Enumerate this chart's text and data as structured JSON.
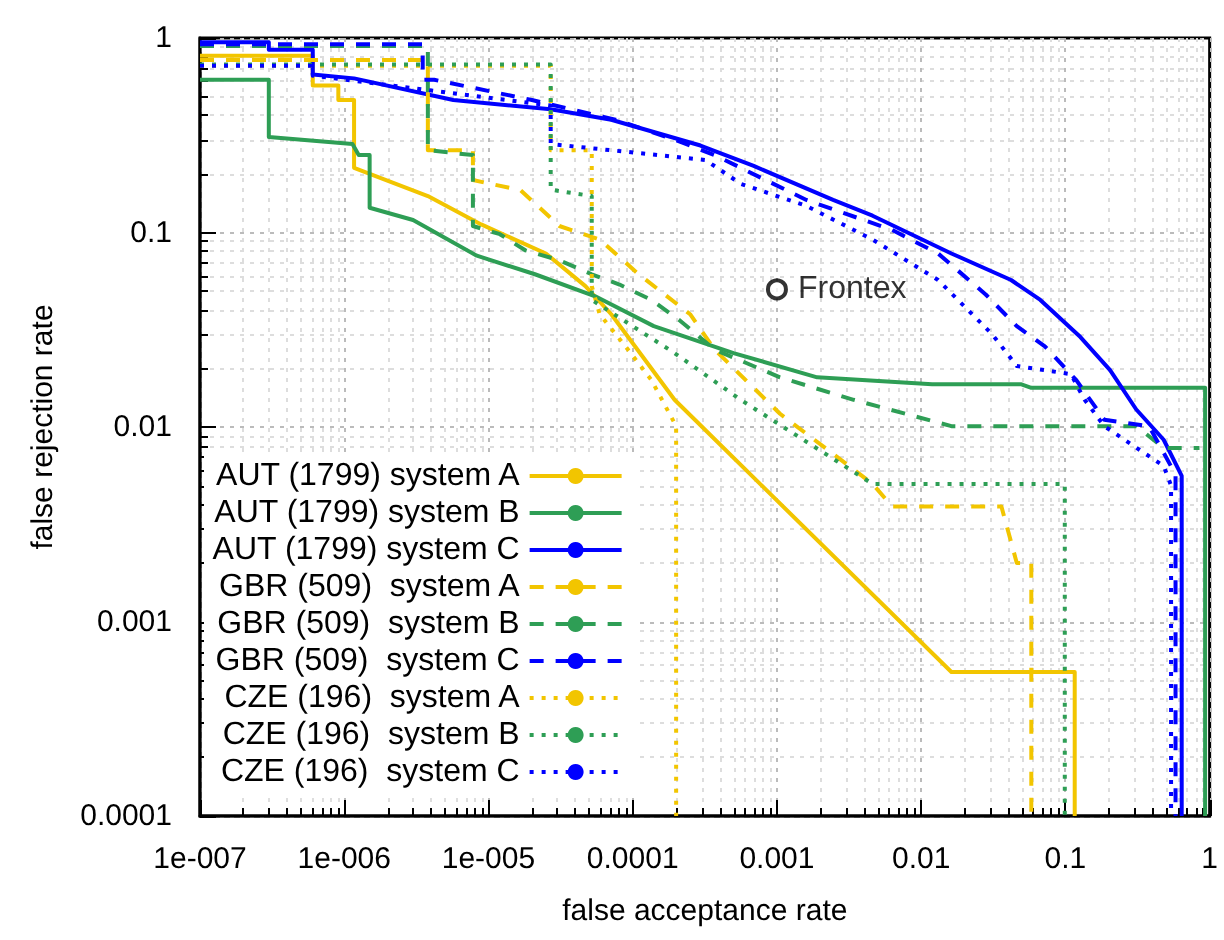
{
  "chart_data": {
    "type": "line",
    "xlabel": "false acceptance rate",
    "ylabel": "false rejection rate",
    "log": "xy",
    "grid": true,
    "legend": "bottom left",
    "marker": "none",
    "xlim": [
      1e-07,
      1
    ],
    "ylim": [
      0.0001,
      1
    ],
    "xticks": [
      {
        "value": 1e-07,
        "label": "1e-007"
      },
      {
        "value": 1e-06,
        "label": "1e-006"
      },
      {
        "value": 1e-05,
        "label": "1e-005"
      },
      0.0001,
      0.001,
      0.01,
      0.1,
      1
    ],
    "yticks": [
      0.0001,
      0.001,
      0.01,
      0.1,
      1
    ],
    "series": [
      {
        "name": "AUT (1799) system A",
        "color": "#f2c500",
        "line_style": "solid",
        "x": [
          1e-07,
          6.05e-07,
          6.05e-07,
          9.1e-07,
          9.1e-07,
          1.17e-06,
          1.17e-06,
          3.8e-06,
          8.9e-06,
          2.5e-05,
          4.7e-05,
          7.1e-05,
          0.000195,
          0.0162,
          0.116,
          0.116
        ],
        "values": [
          0.81,
          0.81,
          0.57,
          0.57,
          0.48,
          0.48,
          0.215,
          0.154,
          0.11,
          0.078,
          0.053,
          0.038,
          0.0138,
          0.00055,
          0.00055,
          0.0001
        ]
      },
      {
        "name": "AUT (1799) system B",
        "color": "#2e9e55",
        "line_style": "solid",
        "x": [
          1e-07,
          3e-07,
          3e-07,
          1.14e-06,
          1.26e-06,
          1.5e-06,
          1.5e-06,
          3e-06,
          8.3e-06,
          2.1e-05,
          5.5e-05,
          0.00014,
          0.0005,
          0.0019,
          0.0119,
          0.049,
          0.058,
          0.93,
          0.93
        ],
        "values": [
          0.61,
          0.61,
          0.31,
          0.285,
          0.25,
          0.25,
          0.134,
          0.116,
          0.076,
          0.061,
          0.047,
          0.033,
          0.024,
          0.018,
          0.0166,
          0.0166,
          0.0159,
          0.0159,
          0.0001
        ]
      },
      {
        "name": "AUT (1799) system C",
        "color": "#0000ff",
        "line_style": "solid",
        "x": [
          1e-07,
          3e-07,
          3e-07,
          6.05e-07,
          6.05e-07,
          1.17e-06,
          5.7e-06,
          2.7e-05,
          7.1e-05,
          0.000295,
          0.00069,
          0.00245,
          0.0046,
          0.0162,
          0.042,
          0.067,
          0.127,
          0.204,
          0.31,
          0.48,
          0.64,
          0.64
        ],
        "values": [
          0.95,
          0.95,
          0.87,
          0.87,
          0.65,
          0.62,
          0.48,
          0.43,
          0.38,
          0.28,
          0.22,
          0.147,
          0.122,
          0.078,
          0.057,
          0.045,
          0.029,
          0.0196,
          0.0123,
          0.0086,
          0.0056,
          0.0001
        ]
      },
      {
        "name": "GBR (509)  system A",
        "color": "#f2c500",
        "line_style": "dashed",
        "x": [
          1e-07,
          3.8e-06,
          3.8e-06,
          7.8e-06,
          7.8e-06,
          1.67e-05,
          3.1e-05,
          5.9e-05,
          0.00011,
          0.00025,
          0.00037,
          0.00105,
          0.0046,
          0.0063,
          0.036,
          0.046,
          0.058,
          0.058
        ],
        "values": [
          0.77,
          0.77,
          0.265,
          0.265,
          0.186,
          0.165,
          0.108,
          0.092,
          0.061,
          0.038,
          0.025,
          0.0117,
          0.0051,
          0.0039,
          0.0039,
          0.002,
          0.002,
          0.0001
        ]
      },
      {
        "name": "GBR (509)  system B",
        "color": "#2e9e55",
        "line_style": "dashed",
        "x": [
          1e-07,
          3.8e-06,
          3.8e-06,
          7.8e-06,
          7.8e-06,
          1.2e-05,
          1.8e-05,
          3.1e-05,
          5.2e-05,
          8.1e-05,
          0.000135,
          0.00021,
          0.00037,
          0.00105,
          0.0034,
          0.0162,
          0.31,
          0.48,
          0.85
        ],
        "values": [
          0.91,
          0.91,
          0.265,
          0.25,
          0.108,
          0.098,
          0.081,
          0.072,
          0.061,
          0.054,
          0.045,
          0.0355,
          0.025,
          0.018,
          0.0138,
          0.0101,
          0.0101,
          0.0078,
          0.0078
        ]
      },
      {
        "name": "GBR (509)  system C",
        "color": "#0000ff",
        "line_style": "dashed",
        "x": [
          1e-07,
          3.5e-06,
          3.5e-06,
          4.2e-06,
          2e-05,
          7.6e-05,
          0.000195,
          0.00037,
          0.0016,
          0.0063,
          0.0131,
          0.028,
          0.046,
          0.072,
          0.119,
          0.186,
          0.38,
          0.58,
          0.58
        ],
        "values": [
          0.93,
          0.93,
          0.61,
          0.61,
          0.48,
          0.38,
          0.3,
          0.25,
          0.147,
          0.103,
          0.078,
          0.048,
          0.033,
          0.026,
          0.0174,
          0.0109,
          0.0101,
          0.0057,
          0.0001
        ]
      },
      {
        "name": "CZE (196)  system A",
        "color": "#f2c500",
        "line_style": "dotted",
        "x": [
          1e-07,
          2.7e-05,
          2.7e-05,
          5.2e-05,
          5.2e-05,
          5.9e-05,
          8.9e-05,
          0.000135,
          0.0002,
          0.0002
        ],
        "values": [
          0.72,
          0.72,
          0.265,
          0.265,
          0.053,
          0.038,
          0.026,
          0.0174,
          0.0101,
          0.0001
        ]
      },
      {
        "name": "CZE (196)  system B",
        "color": "#2e9e55",
        "line_style": "dotted",
        "x": [
          1e-07,
          2.7e-05,
          2.7e-05,
          5.2e-05,
          5.2e-05,
          0.000195,
          0.00056,
          0.0046,
          0.099,
          0.099
        ],
        "values": [
          0.73,
          0.73,
          0.166,
          0.154,
          0.045,
          0.024,
          0.0138,
          0.0051,
          0.0051,
          0.0001
        ]
      },
      {
        "name": "CZE (196)  system C",
        "color": "#0000ff",
        "line_style": "dotted",
        "x": [
          1e-07,
          6.05e-07,
          6.05e-07,
          2.7e-05,
          2.7e-05,
          0.00032,
          0.00056,
          0.0016,
          0.0046,
          0.0131,
          0.031,
          0.046,
          0.109,
          0.136,
          0.186,
          0.48,
          0.54,
          0.54
        ],
        "values": [
          0.72,
          0.72,
          0.64,
          0.45,
          0.285,
          0.236,
          0.178,
          0.137,
          0.092,
          0.057,
          0.03,
          0.0206,
          0.0187,
          0.0138,
          0.0101,
          0.0063,
          0.005,
          0.0001
        ]
      },
      {
        "name": "Frontex",
        "type": "scatter",
        "color": "#000000",
        "marker": "circle",
        "x": [
          0.001
        ],
        "values": [
          0.051
        ]
      }
    ]
  }
}
